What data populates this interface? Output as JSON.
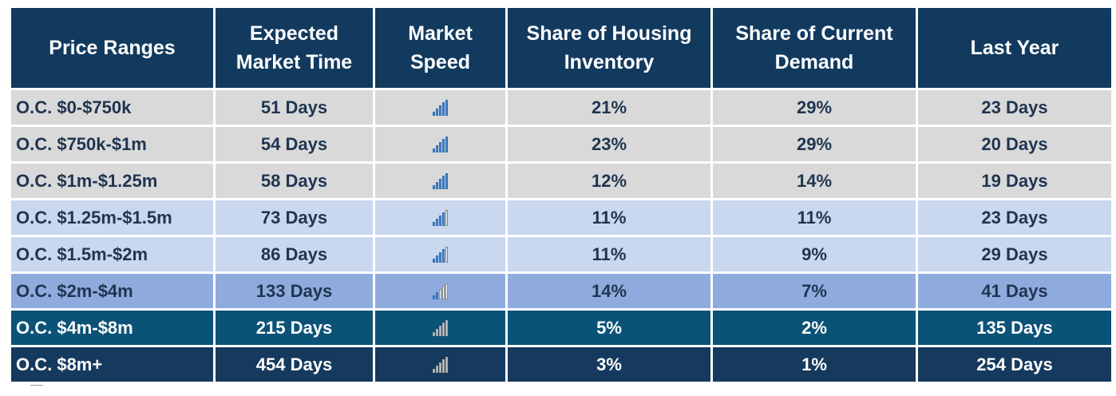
{
  "chart_data": {
    "type": "table",
    "columns": [
      "Price Ranges",
      "Expected\nMarket Time",
      "Market\nSpeed",
      "Share of Housing\nInventory",
      "Share of Current\nDemand",
      "Last Year"
    ],
    "rows": [
      {
        "range": "O.C. $0-$750k",
        "market_time": "51 Days",
        "speed_level": 5,
        "inventory": "21%",
        "demand": "29%",
        "last_year": "23 Days"
      },
      {
        "range": "O.C. $750k-$1m",
        "market_time": "54 Days",
        "speed_level": 5,
        "inventory": "23%",
        "demand": "29%",
        "last_year": "20 Days"
      },
      {
        "range": "O.C. $1m-$1.25m",
        "market_time": "58 Days",
        "speed_level": 5,
        "inventory": "12%",
        "demand": "14%",
        "last_year": "19 Days"
      },
      {
        "range": "O.C. $1.25m-$1.5m",
        "market_time": "73 Days",
        "speed_level": 4,
        "inventory": "11%",
        "demand": "11%",
        "last_year": "23 Days"
      },
      {
        "range": "O.C. $1.5m-$2m",
        "market_time": "86 Days",
        "speed_level": 4,
        "inventory": "11%",
        "demand": "9%",
        "last_year": "29 Days"
      },
      {
        "range": "O.C. $2m-$4m",
        "market_time": "133 Days",
        "speed_level": 2,
        "inventory": "14%",
        "demand": "7%",
        "last_year": "41 Days"
      },
      {
        "range": "O.C. $4m-$8m",
        "market_time": "215 Days",
        "speed_level": 0,
        "inventory": "5%",
        "demand": "2%",
        "last_year": "135 Days"
      },
      {
        "range": "O.C. $8m+",
        "market_time": "454 Days",
        "speed_level": 0,
        "inventory": "3%",
        "demand": "1%",
        "last_year": "254 Days"
      }
    ],
    "row_colors": [
      "#d9d9d9",
      "#d9d9d9",
      "#d9d9d9",
      "#c9d7ef",
      "#c9d7ef",
      "#8fabdd",
      "#0b5277",
      "#163a5d"
    ],
    "header_color": "#123a5f"
  }
}
